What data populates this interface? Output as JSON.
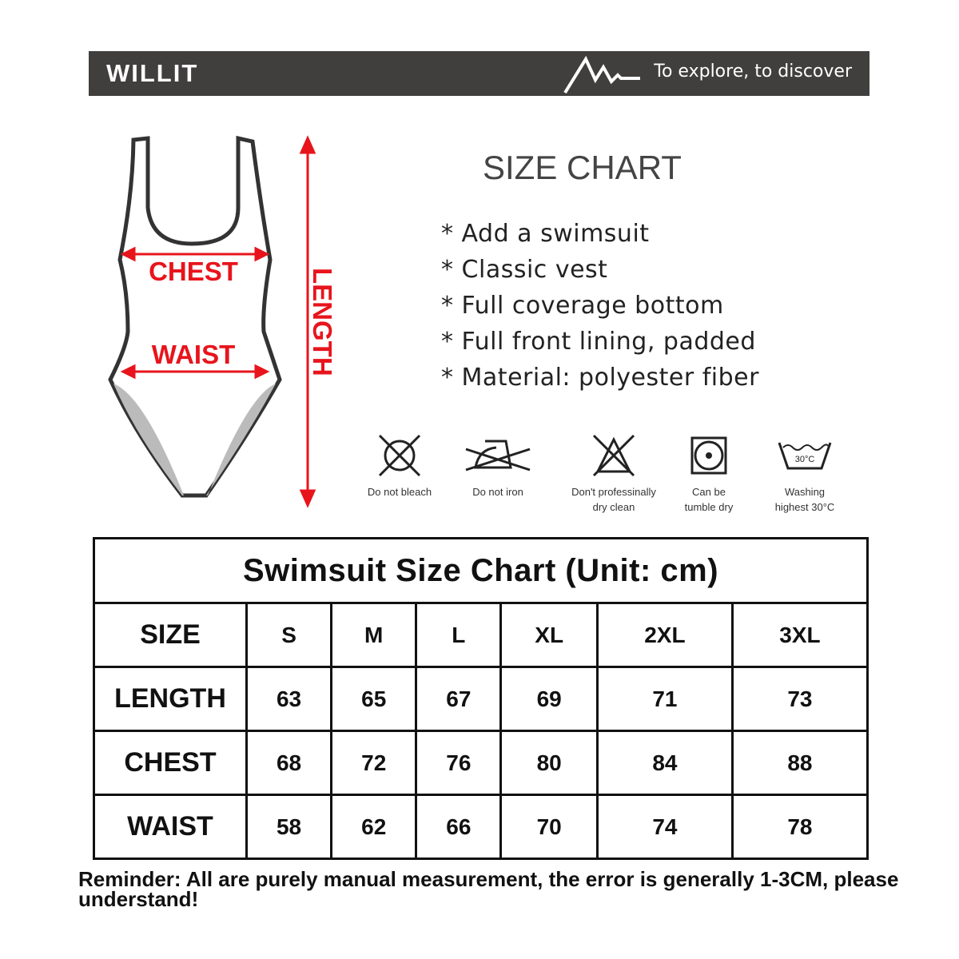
{
  "banner": {
    "brand": "WILLIT",
    "tagline": "To explore, to discover",
    "logo_icon": "mountain-icon"
  },
  "diagram": {
    "labels": {
      "chest": "CHEST",
      "waist": "WAIST",
      "length": "LENGTH"
    },
    "accent_color": "#e8141c"
  },
  "header": {
    "title": "SIZE CHART"
  },
  "features": [
    "* Add a swimsuit",
    "* Classic vest",
    "* Full coverage bottom",
    "* Full front lining, padded",
    "* Material: polyester fiber"
  ],
  "care": [
    {
      "icon": "no-bleach-icon",
      "line1": "Do not bleach",
      "line2": ""
    },
    {
      "icon": "no-iron-icon",
      "line1": "Do not iron",
      "line2": ""
    },
    {
      "icon": "no-dry-clean-icon",
      "line1": "Don't professinally",
      "line2": "dry clean"
    },
    {
      "icon": "tumble-dry-icon",
      "line1": "Can be",
      "line2": "tumble dry"
    },
    {
      "icon": "wash-30-icon",
      "line1": "Washing",
      "line2": "highest 30°C",
      "badge": "30°C"
    }
  ],
  "table": {
    "title": "Swimsuit Size Chart (Unit: cm)",
    "header": [
      "SIZE",
      "S",
      "M",
      "L",
      "XL",
      "2XL",
      "3XL"
    ],
    "rows": [
      [
        "LENGTH",
        "63",
        "65",
        "67",
        "69",
        "71",
        "73"
      ],
      [
        "CHEST",
        "68",
        "72",
        "76",
        "80",
        "84",
        "88"
      ],
      [
        "WAIST",
        "58",
        "62",
        "66",
        "70",
        "74",
        "78"
      ]
    ]
  },
  "reminder": "Reminder: All are purely manual measurement, the error is generally 1-3CM, please understand!"
}
